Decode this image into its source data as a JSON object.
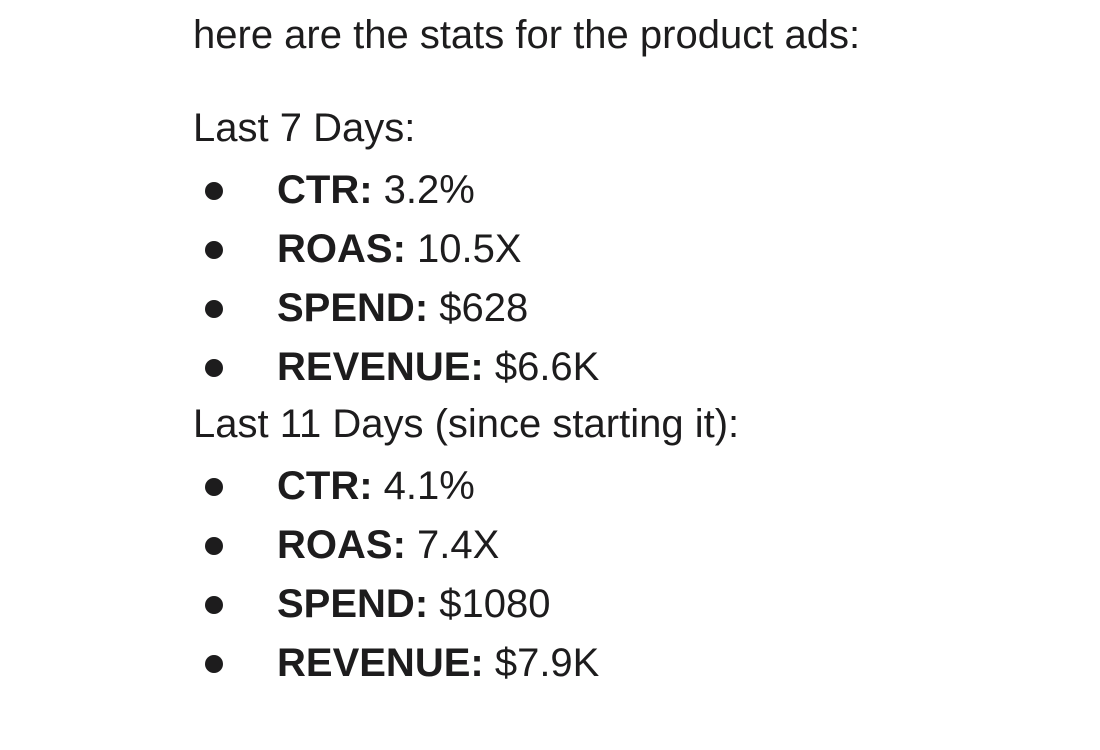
{
  "message": {
    "intro": "here are the stats for the product ads:",
    "sections": [
      {
        "heading": "Last 7 Days:",
        "stats": [
          {
            "label": "CTR:",
            "value": "3.2%"
          },
          {
            "label": "ROAS:",
            "value": "10.5X"
          },
          {
            "label": "SPEND:",
            "value": "$628"
          },
          {
            "label": "REVENUE:",
            "value": "$6.6K"
          }
        ]
      },
      {
        "heading": "Last 11 Days (since starting it):",
        "stats": [
          {
            "label": "CTR:",
            "value": "4.1%"
          },
          {
            "label": "ROAS:",
            "value": "7.4X"
          },
          {
            "label": "SPEND:",
            "value": "$1080"
          },
          {
            "label": "REVENUE:",
            "value": "$7.9K"
          }
        ]
      }
    ]
  }
}
